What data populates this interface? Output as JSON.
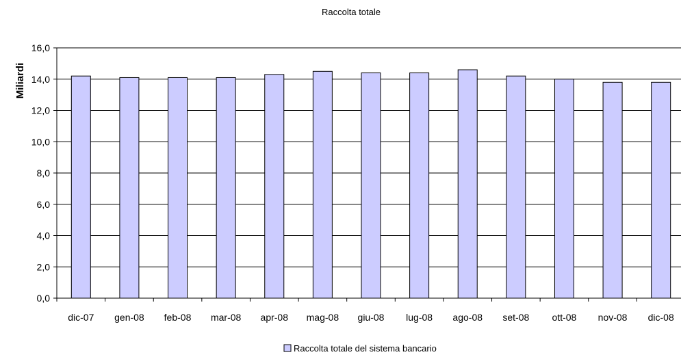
{
  "chart_data": {
    "type": "bar",
    "title": "Raccolta totale",
    "xlabel": "",
    "ylabel": "Miliardi",
    "categories": [
      "dic-07",
      "gen-08",
      "feb-08",
      "mar-08",
      "apr-08",
      "mag-08",
      "giu-08",
      "lug-08",
      "ago-08",
      "set-08",
      "ott-08",
      "nov-08",
      "dic-08"
    ],
    "series": [
      {
        "name": "Raccolta totale del sistema bancario",
        "values": [
          14.2,
          14.1,
          14.1,
          14.1,
          14.3,
          14.5,
          14.4,
          14.4,
          14.6,
          14.2,
          14.0,
          13.8,
          13.8
        ],
        "color": "#ccccff"
      }
    ],
    "ylim": [
      0,
      16
    ],
    "yticks": [
      "0,0",
      "2,0",
      "4,0",
      "6,0",
      "8,0",
      "10,0",
      "12,0",
      "14,0",
      "16,0"
    ],
    "grid": true,
    "legend_position": "bottom"
  }
}
